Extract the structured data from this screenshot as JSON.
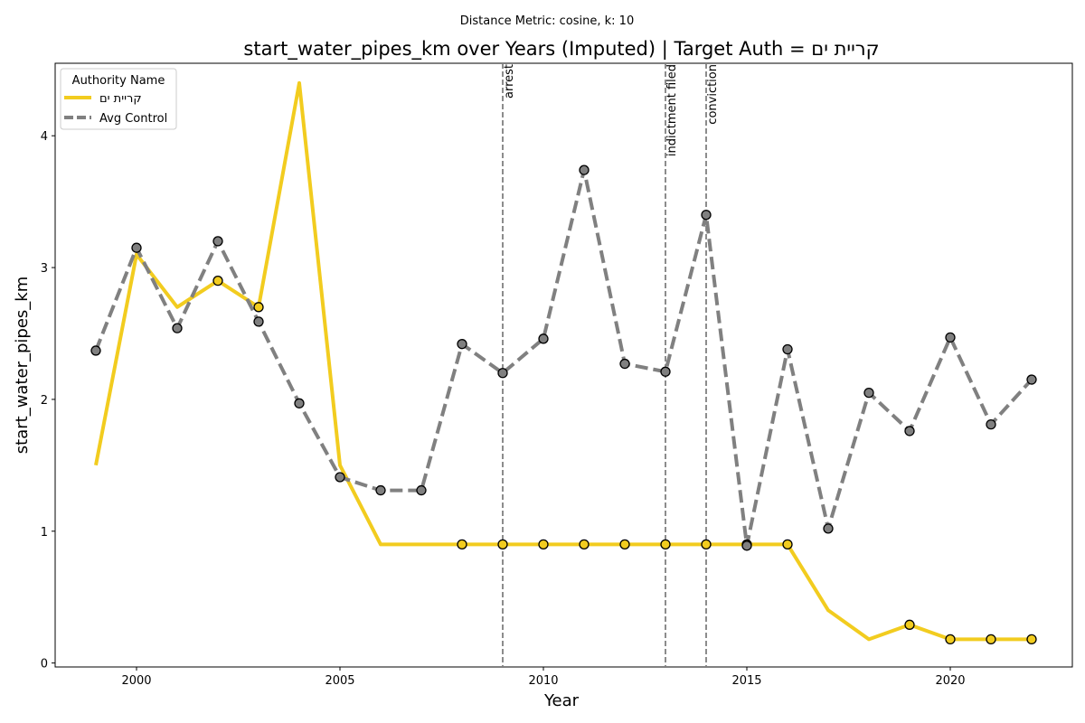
{
  "chart_data": {
    "type": "line",
    "subtitle": "Distance Metric: cosine, k: 10",
    "title": "start_water_pipes_km over Years (Imputed) | Target Auth = קריית ים",
    "xlabel": "Year",
    "ylabel": "start_water_pipes_km",
    "xlim": [
      1998,
      2023
    ],
    "ylim": [
      -0.03,
      4.55
    ],
    "x_ticks": [
      2000,
      2005,
      2010,
      2015,
      2020
    ],
    "y_ticks": [
      0,
      1,
      2,
      3,
      4
    ],
    "grid": false,
    "legend": {
      "title": "Authority Name",
      "placement": "top-left"
    },
    "series": [
      {
        "name": "קריית ים",
        "color": "#f2cc1f",
        "style": "solid",
        "x": [
          1999,
          2000,
          2001,
          2002,
          2003,
          2004,
          2005,
          2006,
          2007,
          2008,
          2009,
          2010,
          2011,
          2012,
          2013,
          2014,
          2015,
          2016,
          2017,
          2018,
          2019,
          2020,
          2021,
          2022
        ],
        "y": [
          1.5,
          3.1,
          2.7,
          2.9,
          2.7,
          4.4,
          1.5,
          0.9,
          0.9,
          0.9,
          0.9,
          0.9,
          0.9,
          0.9,
          0.9,
          0.9,
          0.9,
          0.9,
          0.4,
          0.18,
          0.29,
          0.18,
          0.18,
          0.18
        ],
        "marker_x": [
          2002,
          2003,
          2008,
          2009,
          2010,
          2011,
          2012,
          2013,
          2014,
          2015,
          2016,
          2019,
          2020,
          2021,
          2022
        ]
      },
      {
        "name": "Avg Control",
        "color": "#808080",
        "style": "dashed",
        "x": [
          1999,
          2000,
          2001,
          2002,
          2003,
          2004,
          2005,
          2006,
          2007,
          2008,
          2009,
          2010,
          2011,
          2012,
          2013,
          2014,
          2015,
          2016,
          2017,
          2018,
          2019,
          2020,
          2021,
          2022
        ],
        "y": [
          2.37,
          3.15,
          2.54,
          3.2,
          2.59,
          1.97,
          1.41,
          1.31,
          1.31,
          2.42,
          2.2,
          2.46,
          3.74,
          2.27,
          2.21,
          3.4,
          0.89,
          2.38,
          1.02,
          2.05,
          1.76,
          2.47,
          1.81,
          2.15
        ],
        "marker_x": [
          1999,
          2000,
          2001,
          2002,
          2003,
          2004,
          2005,
          2006,
          2007,
          2008,
          2009,
          2010,
          2011,
          2012,
          2013,
          2014,
          2015,
          2016,
          2017,
          2018,
          2019,
          2020,
          2021,
          2022
        ]
      }
    ],
    "events": [
      {
        "x": 2009,
        "label": "arrest"
      },
      {
        "x": 2013,
        "label": "indictment filed"
      },
      {
        "x": 2014,
        "label": "conviction"
      }
    ]
  }
}
